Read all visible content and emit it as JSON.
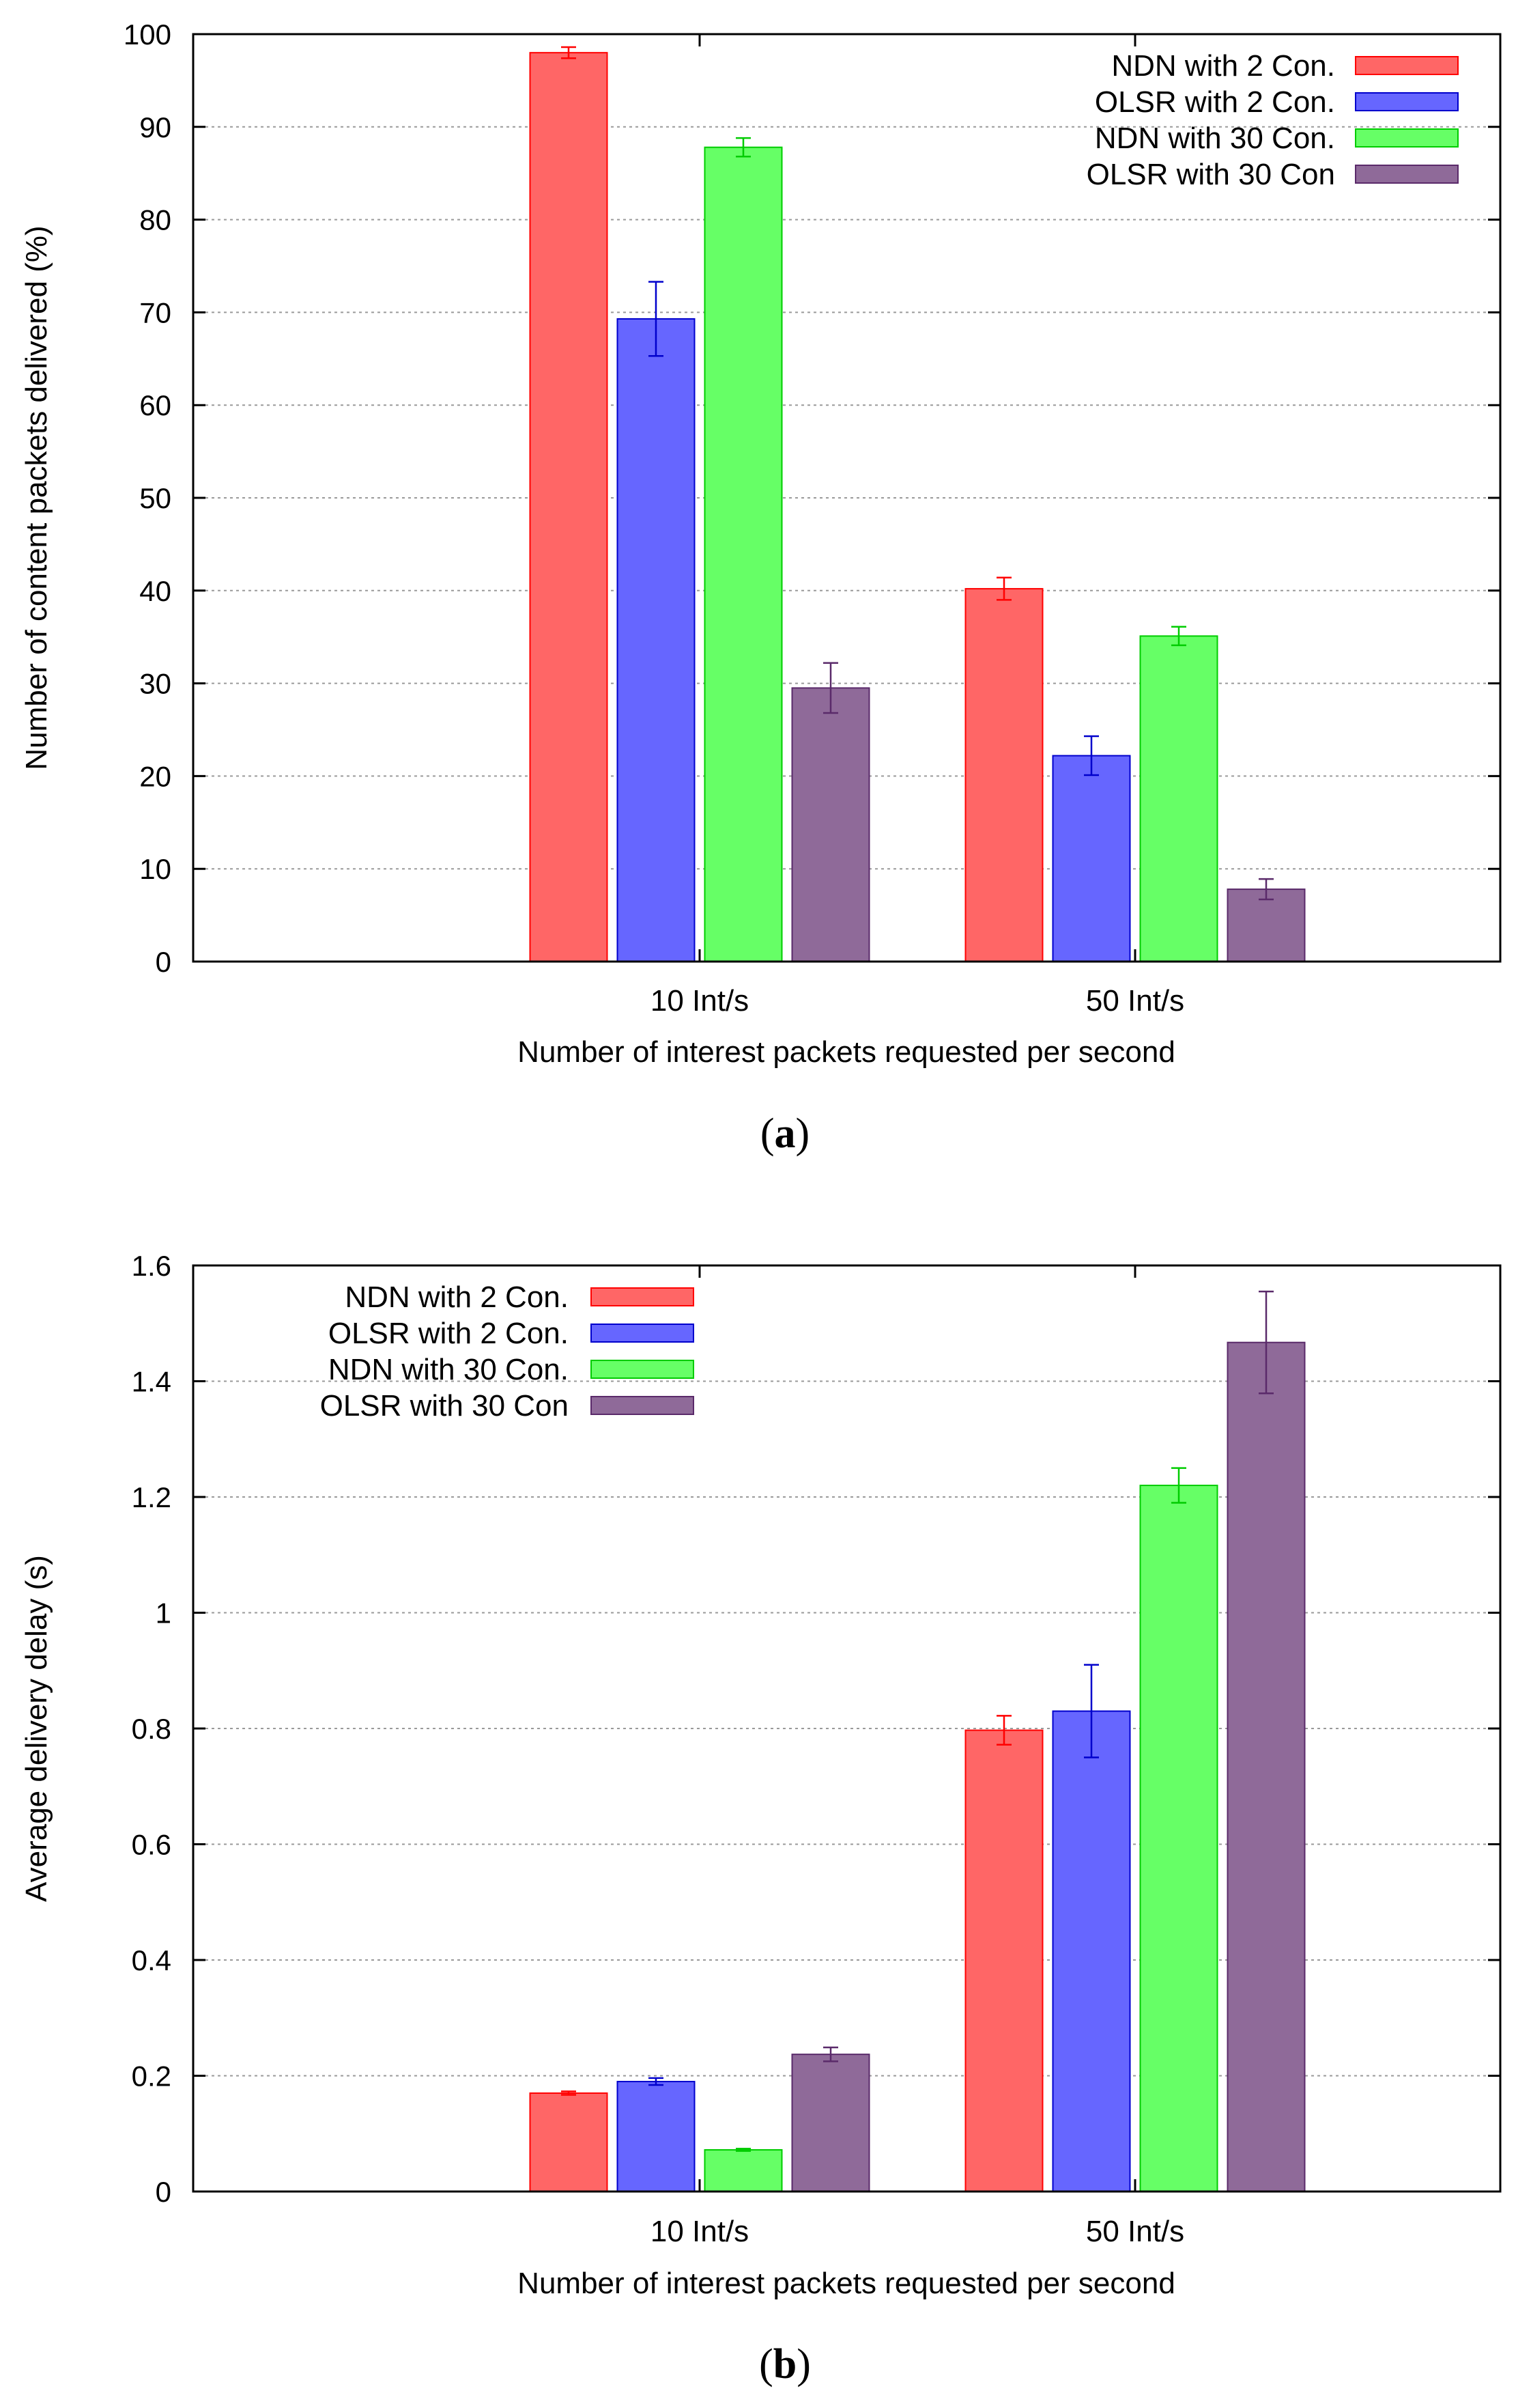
{
  "chart_data": [
    {
      "type": "bar",
      "panel_label": "a",
      "categories": [
        "10 Int/s",
        "50 Int/s"
      ],
      "series": [
        {
          "name": "NDN with 2 Con.",
          "color": "#ff6666",
          "error_color": "#ff0000",
          "values": [
            98,
            40.2
          ],
          "errors": [
            0.6,
            1.2
          ]
        },
        {
          "name": "OLSR with 2 Con.",
          "color": "#6666ff",
          "error_color": "#0000cc",
          "values": [
            69.3,
            22.2
          ],
          "errors": [
            4.0,
            2.1
          ]
        },
        {
          "name": "NDN with 30 Con.",
          "color": "#66ff66",
          "error_color": "#00cc00",
          "values": [
            87.8,
            35.1
          ],
          "errors": [
            1.0,
            1.0
          ]
        },
        {
          "name": "OLSR with 30 Con",
          "color": "#8f6a99",
          "error_color": "#5a2a6a",
          "values": [
            29.5,
            7.8
          ],
          "errors": [
            2.7,
            1.1
          ]
        }
      ],
      "yticks": [
        0,
        10,
        20,
        30,
        40,
        50,
        60,
        70,
        80,
        90,
        100
      ],
      "ylim": [
        0,
        100
      ],
      "xlabel": "Number of interest packets requested per second",
      "ylabel": "Number of content packets delivered (%)",
      "grid": true,
      "legend": "top-right",
      "title": ""
    },
    {
      "type": "bar",
      "panel_label": "b",
      "categories": [
        "10 Int/s",
        "50 Int/s"
      ],
      "series": [
        {
          "name": "NDN with 2 Con.",
          "color": "#ff6666",
          "error_color": "#ff0000",
          "values": [
            0.17,
            0.797
          ],
          "errors": [
            0.003,
            0.025
          ]
        },
        {
          "name": "OLSR with 2 Con.",
          "color": "#6666ff",
          "error_color": "#0000cc",
          "values": [
            0.19,
            0.83
          ],
          "errors": [
            0.006,
            0.08
          ]
        },
        {
          "name": "NDN with 30 Con.",
          "color": "#66ff66",
          "error_color": "#00cc00",
          "values": [
            0.072,
            1.22
          ],
          "errors": [
            0.002,
            0.03
          ]
        },
        {
          "name": "OLSR with 30 Con",
          "color": "#8f6a99",
          "error_color": "#5a2a6a",
          "values": [
            0.237,
            1.467
          ],
          "errors": [
            0.012,
            0.088
          ]
        }
      ],
      "yticks": [
        "0",
        "0.2",
        "0.4",
        "0.6",
        "0.8",
        "1",
        "1.2",
        "1.4",
        "1.6"
      ],
      "ylim": [
        0,
        1.6
      ],
      "xlabel": "Number of interest packets requested per second",
      "ylabel": "Average delivery delay (s)",
      "grid": true,
      "legend": "top-left",
      "title": ""
    }
  ]
}
